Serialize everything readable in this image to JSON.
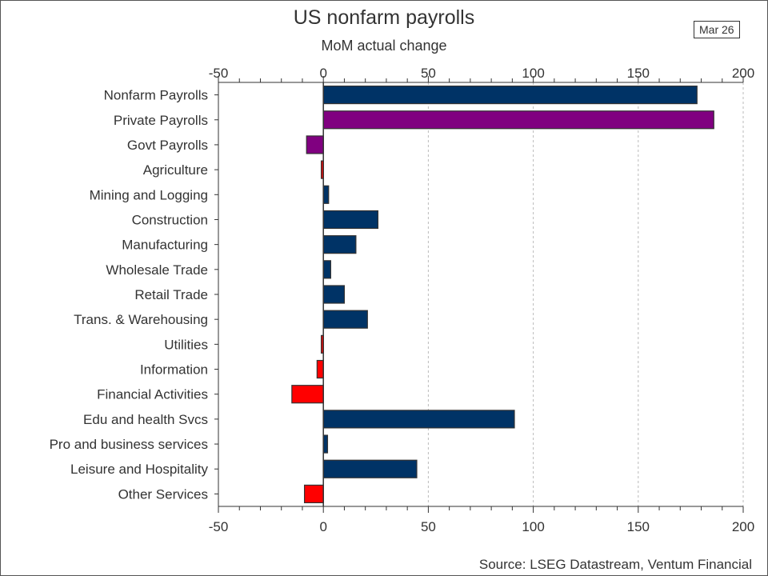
{
  "chart_data": {
    "type": "bar",
    "orientation": "horizontal",
    "title": "US nonfarm payrolls",
    "subtitle": "MoM actual change",
    "date_badge": "Mar 26",
    "source": "Source: LSEG Datastream, Ventum Financial",
    "xlim": [
      -50,
      200
    ],
    "xticks": [
      "-50",
      "0",
      "50",
      "100",
      "150",
      "200"
    ],
    "grid": "vertical dashed",
    "categories": [
      "Nonfarm Payrolls",
      "Private Payrolls",
      "Govt Payrolls",
      "Agriculture",
      "Mining and Logging",
      "Construction",
      "Manufacturing",
      "Wholesale Trade",
      "Retail Trade",
      "Trans. & Warehousing",
      "Utilities",
      "Information",
      "Financial Activities",
      "Edu and health Svcs",
      "Pro and business services",
      "Leisure and Hospitality",
      "Other Services"
    ],
    "values": [
      178,
      186,
      -8,
      -1,
      2.5,
      26,
      15.5,
      3.5,
      10,
      21,
      -1,
      -3,
      -15,
      91,
      2,
      44.5,
      -9
    ],
    "colors": {
      "positive": "#003366",
      "negative": "#ff0000",
      "payrolls_sub": "#800080"
    }
  }
}
